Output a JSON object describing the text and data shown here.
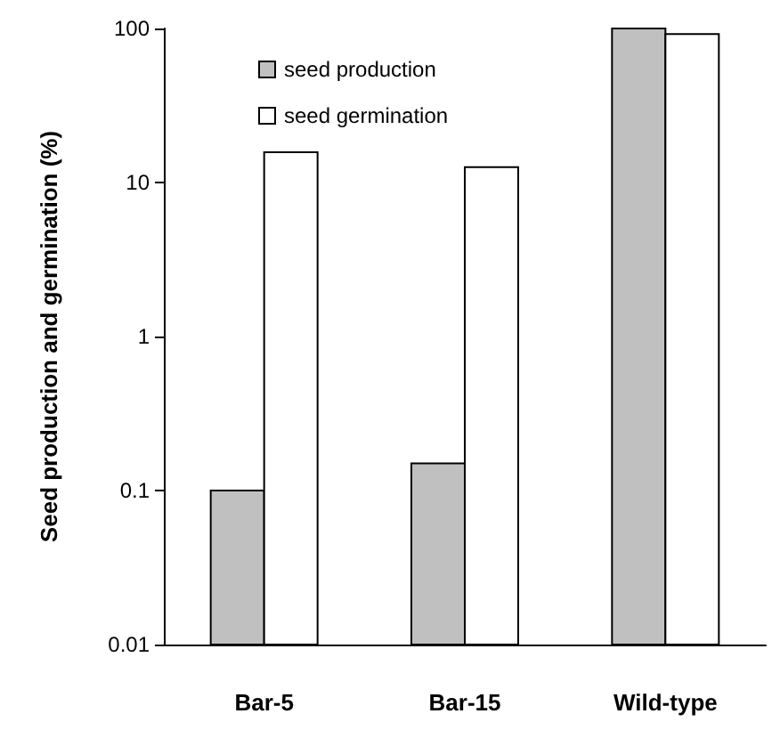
{
  "chart_data": {
    "type": "bar",
    "ylabel": "Seed production and germination (%)",
    "categories": [
      "Bar-5",
      "Bar-15",
      "Wild-type"
    ],
    "series": [
      {
        "name": "seed production",
        "color": "#c0c0c0",
        "values": [
          0.1,
          0.15,
          100
        ]
      },
      {
        "name": "seed germination",
        "color": "#ffffff",
        "values": [
          15.7,
          12.6,
          92
        ]
      }
    ],
    "log": true,
    "ylim": [
      0.01,
      100
    ],
    "yticks": [
      0.01,
      0.1,
      1,
      10,
      100
    ],
    "grid": false,
    "legend": "top left"
  }
}
